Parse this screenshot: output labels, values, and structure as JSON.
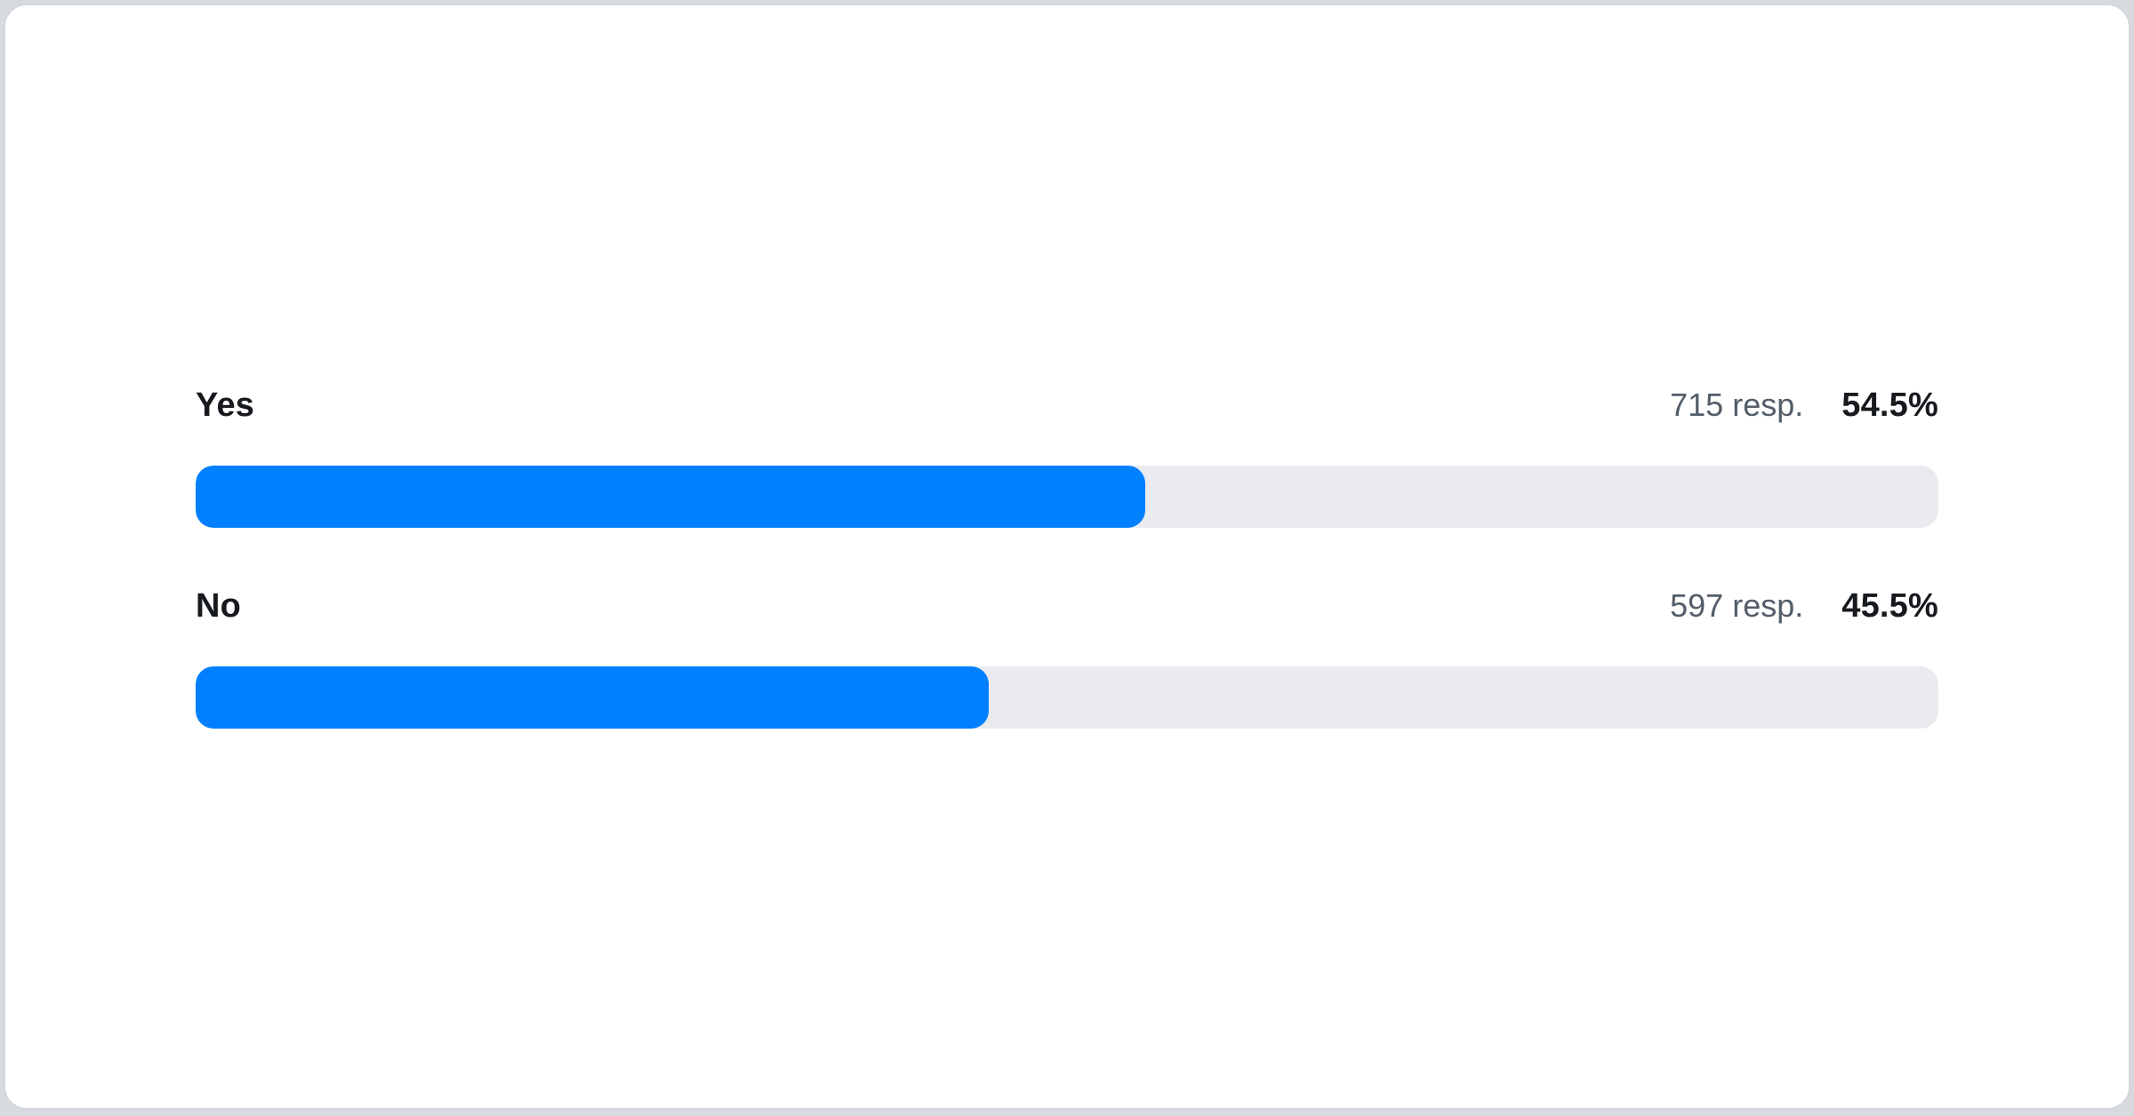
{
  "page": {
    "background_color": "#D7DADE",
    "card_background": "#FFFFFF",
    "card_border_color": "#D3D7DC"
  },
  "poll": {
    "bar_color": "#0080FF",
    "track_color": "#E9EBEF",
    "rows": [
      {
        "label": "Yes",
        "responses_label": "715 resp.",
        "percent_label": "54.5%",
        "percent_css": "54.5%"
      },
      {
        "label": "No",
        "responses_label": "597 resp.",
        "percent_label": "45.5%",
        "percent_css": "45.5%"
      }
    ]
  },
  "chart_data": {
    "type": "bar",
    "orientation": "horizontal",
    "title": "",
    "categories": [
      "Yes",
      "No"
    ],
    "values": [
      54.5,
      45.5
    ],
    "value_unit": "%",
    "response_counts": [
      715,
      597
    ],
    "data_labels": [
      "54.5%",
      "45.5%"
    ],
    "count_labels": [
      "715 resp.",
      "597 resp."
    ],
    "xlim": [
      0,
      100
    ],
    "grid": false,
    "legend": false,
    "bar_color": "#0080FF",
    "track_color": "#E9EBEF"
  }
}
